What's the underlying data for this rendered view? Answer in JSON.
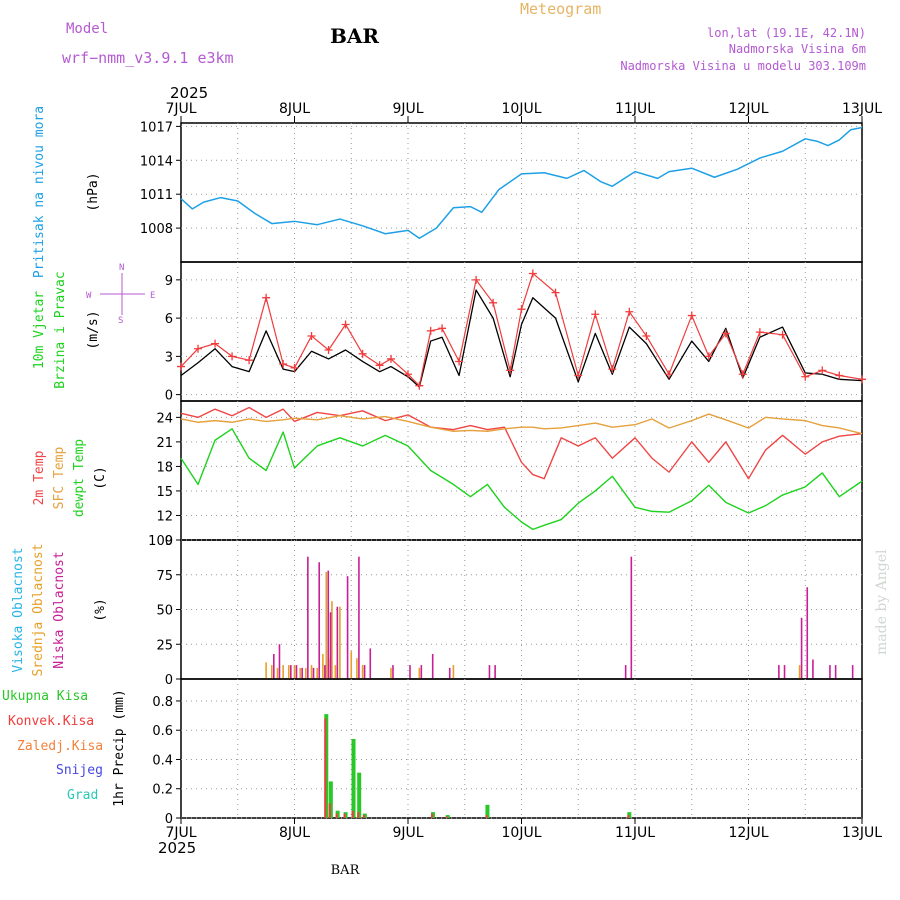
{
  "header": {
    "model_label": "Model",
    "model_name": "wrf−nmm_v3.9.1  e3km",
    "station": "BAR",
    "title": "Meteogram",
    "lonlat": "lon,lat (19.1E, 42.1N)",
    "elevation": "Nadmorska Visina 6m",
    "model_elevation": "Nadmorska Visina u modelu 303.109m",
    "year_top": "2025",
    "year_bottom": "2025",
    "footer_station": "BAR",
    "watermark": "made by Angel",
    "compass": [
      "N",
      "E",
      "S",
      "W"
    ]
  },
  "time_axis": {
    "days": [
      "7JUL",
      "8JUL",
      "9JUL",
      "10JUL",
      "11JUL",
      "12JUL",
      "13JUL"
    ]
  },
  "colors": {
    "pressure": "#1ea0e6",
    "wind_speed": "#000000",
    "wind_gust": "#f03c3c",
    "temp2m": "#f04646",
    "sfc_temp": "#e6a03c",
    "dewpt": "#1ed21e",
    "cloud_high": "#28b4e6",
    "cloud_mid": "#e6a028",
    "cloud_low": "#c81e96",
    "precip_total": "#28c828",
    "precip_conv": "#f03c3c",
    "precip_frozen": "#f0823c",
    "snow": "#4646e6",
    "graupel": "#28c8b4"
  },
  "chart_data": [
    {
      "type": "line",
      "panel": "pressure",
      "label": "Pritisak na nivou mora",
      "unit": "(hPa)",
      "ylim": [
        1005,
        1017.3
      ],
      "yticks": [
        "1017",
        "1014",
        "1011",
        "1008"
      ],
      "ytick_values": [
        1017,
        1014,
        1011,
        1008
      ],
      "x": [
        0,
        0.1,
        0.2,
        0.35,
        0.5,
        0.65,
        0.8,
        1.0,
        1.2,
        1.4,
        1.6,
        1.8,
        2.0,
        2.1,
        2.25,
        2.4,
        2.55,
        2.65,
        2.8,
        3.0,
        3.2,
        3.4,
        3.55,
        3.7,
        3.8,
        4.0,
        4.2,
        4.3,
        4.5,
        4.7,
        4.9,
        5.1,
        5.3,
        5.5,
        5.6,
        5.7,
        5.8,
        5.9,
        6.0
      ],
      "values": [
        1010.6,
        1009.7,
        1010.3,
        1010.7,
        1010.4,
        1009.3,
        1008.4,
        1008.6,
        1008.3,
        1008.8,
        1008.2,
        1007.5,
        1007.8,
        1007.1,
        1008.0,
        1009.8,
        1009.9,
        1009.4,
        1011.4,
        1012.8,
        1012.9,
        1012.4,
        1013.1,
        1012.1,
        1011.7,
        1013.0,
        1012.4,
        1013.0,
        1013.3,
        1012.5,
        1013.2,
        1014.2,
        1014.8,
        1015.9,
        1015.7,
        1015.3,
        1015.8,
        1016.7,
        1016.9
      ]
    },
    {
      "type": "line",
      "panel": "wind",
      "label": "10m Vjetar",
      "label2": "Brzina i Pravac",
      "unit": "(m/s)",
      "ylim": [
        -0.5,
        10.4
      ],
      "yticks": [
        "9",
        "6",
        "3",
        "0"
      ],
      "ytick_values": [
        9,
        6,
        3,
        0
      ],
      "x": [
        0,
        0.15,
        0.3,
        0.45,
        0.6,
        0.75,
        0.9,
        1.0,
        1.15,
        1.3,
        1.45,
        1.6,
        1.75,
        1.85,
        2.0,
        2.1,
        2.2,
        2.3,
        2.45,
        2.6,
        2.75,
        2.9,
        3.0,
        3.1,
        3.3,
        3.5,
        3.65,
        3.8,
        3.95,
        4.1,
        4.3,
        4.5,
        4.65,
        4.8,
        4.95,
        5.1,
        5.3,
        5.5,
        5.65,
        5.8,
        6.0
      ],
      "series": [
        {
          "name": "speed",
          "values": [
            1.5,
            2.5,
            3.6,
            2.2,
            1.8,
            5.0,
            2.0,
            1.8,
            3.4,
            2.8,
            3.5,
            2.6,
            1.8,
            2.2,
            1.4,
            0.6,
            4.2,
            4.5,
            1.5,
            8.2,
            6.0,
            1.4,
            5.5,
            7.6,
            6.0,
            1.0,
            4.8,
            1.6,
            5.3,
            4.0,
            1.2,
            4.2,
            2.6,
            5.2,
            1.3,
            4.5,
            5.3,
            1.7,
            1.6,
            1.2,
            1.1
          ]
        },
        {
          "name": "gust",
          "values": [
            2.2,
            3.6,
            4.0,
            3.0,
            2.7,
            7.6,
            2.4,
            2.1,
            4.6,
            3.5,
            5.5,
            3.2,
            2.3,
            2.8,
            1.6,
            0.7,
            5.0,
            5.2,
            2.6,
            9.0,
            7.2,
            1.9,
            6.7,
            9.5,
            8.0,
            1.5,
            6.3,
            2.0,
            6.5,
            4.6,
            1.6,
            6.2,
            3.0,
            4.8,
            1.6,
            4.9,
            4.7,
            1.4,
            1.9,
            1.5,
            1.2
          ]
        }
      ]
    },
    {
      "type": "line",
      "panel": "temperature",
      "label": "2m Temp",
      "label2": "SFC Temp",
      "label3": "dewpt Temp",
      "unit": "(C)",
      "ylim": [
        9,
        26
      ],
      "yticks": [
        "24",
        "21",
        "18",
        "15",
        "12",
        "9"
      ],
      "ytick_values": [
        24,
        21,
        18,
        15,
        12,
        9
      ],
      "x": [
        0,
        0.15,
        0.3,
        0.45,
        0.6,
        0.75,
        0.9,
        1.0,
        1.2,
        1.4,
        1.6,
        1.8,
        2.0,
        2.2,
        2.4,
        2.55,
        2.7,
        2.85,
        3.0,
        3.1,
        3.2,
        3.35,
        3.5,
        3.65,
        3.8,
        4.0,
        4.15,
        4.3,
        4.5,
        4.65,
        4.8,
        5.0,
        5.15,
        5.3,
        5.5,
        5.65,
        5.8,
        6.0
      ],
      "series": [
        {
          "name": "2m Temp",
          "values": [
            24.5,
            24.0,
            25.0,
            24.2,
            25.2,
            24.0,
            25.0,
            23.5,
            24.6,
            24.2,
            24.8,
            23.6,
            24.3,
            22.8,
            22.5,
            23.0,
            22.5,
            22.8,
            18.5,
            17.0,
            16.5,
            21.5,
            20.5,
            21.5,
            19.0,
            21.5,
            19.0,
            17.3,
            21.0,
            18.5,
            21.0,
            16.5,
            20.0,
            21.8,
            19.5,
            21.0,
            21.7,
            22.0
          ]
        },
        {
          "name": "SFC Temp",
          "values": [
            23.8,
            23.4,
            23.6,
            23.4,
            23.8,
            23.5,
            23.7,
            23.9,
            23.7,
            24.2,
            23.8,
            24.1,
            23.5,
            22.8,
            22.3,
            22.4,
            22.3,
            22.6,
            22.8,
            22.8,
            22.6,
            22.7,
            23.0,
            23.3,
            22.8,
            23.1,
            23.8,
            22.7,
            23.6,
            24.4,
            23.7,
            22.7,
            24.0,
            23.8,
            23.6,
            23.0,
            22.7,
            22.0
          ]
        },
        {
          "name": "dewpt Temp",
          "values": [
            19.0,
            15.8,
            21.2,
            22.6,
            19.0,
            17.5,
            22.2,
            17.8,
            20.5,
            21.5,
            20.5,
            21.8,
            20.5,
            17.5,
            15.8,
            14.3,
            15.8,
            13.0,
            11.2,
            10.3,
            10.8,
            11.5,
            13.5,
            15.0,
            16.8,
            13.0,
            12.5,
            12.4,
            13.8,
            15.7,
            13.6,
            12.3,
            13.2,
            14.5,
            15.5,
            17.2,
            14.3,
            16.2
          ]
        }
      ]
    },
    {
      "type": "bar",
      "panel": "clouds",
      "label": "Visoka Oblacnost",
      "label2": "Srednja Oblacnost",
      "label3": "Niska Oblacnost",
      "unit": "(%)",
      "ylim": [
        0,
        100
      ],
      "yticks": [
        "100",
        "75",
        "50",
        "25",
        "0"
      ],
      "ytick_values": [
        100,
        75,
        50,
        25,
        0
      ],
      "x": [
        0.75,
        0.8,
        0.85,
        0.9,
        0.95,
        1.0,
        1.05,
        1.1,
        1.15,
        1.2,
        1.25,
        1.28,
        1.3,
        1.33,
        1.36,
        1.4,
        1.45,
        1.5,
        1.55,
        1.6,
        1.65,
        1.7,
        1.85,
        2.0,
        2.1,
        2.2,
        2.35,
        2.4,
        2.7,
        2.75,
        3.9,
        3.95,
        4.8,
        4.85,
        5.25,
        5.3,
        5.35,
        5.45,
        5.5,
        5.55,
        5.7,
        5.75,
        5.9,
        6.0
      ],
      "series": [
        {
          "name": "Visoka",
          "values": [
            0,
            0,
            0,
            0,
            0,
            0,
            0,
            0,
            0,
            0,
            0,
            0,
            0,
            0,
            0,
            0,
            0,
            0,
            0,
            0,
            0,
            0,
            0,
            0,
            0,
            0,
            0,
            0,
            0,
            0,
            0,
            0,
            0,
            0,
            0,
            0,
            0,
            0,
            0,
            0,
            0,
            0,
            0,
            0
          ]
        },
        {
          "name": "Srednja",
          "values": [
            12,
            10,
            8,
            10,
            10,
            10,
            8,
            8,
            10,
            8,
            18,
            77,
            15,
            56,
            10,
            52,
            0,
            20,
            15,
            10,
            0,
            0,
            8,
            0,
            8,
            0,
            0,
            10,
            0,
            0,
            0,
            0,
            0,
            0,
            0,
            0,
            0,
            10,
            0,
            0,
            0,
            0,
            0,
            0
          ]
        },
        {
          "name": "Niska",
          "values": [
            0,
            18,
            25,
            0,
            10,
            10,
            8,
            88,
            8,
            84,
            10,
            78,
            48,
            0,
            52,
            0,
            74,
            0,
            88,
            10,
            22,
            0,
            10,
            10,
            10,
            18,
            8,
            0,
            10,
            10,
            10,
            88,
            0,
            0,
            10,
            10,
            0,
            44,
            66,
            14,
            10,
            10,
            10,
            0
          ]
        }
      ]
    },
    {
      "type": "bar",
      "panel": "precipitation",
      "label": "Ukupna Kisa",
      "label2": "Konvek.Kisa",
      "label3": "Zaledj.Kisa",
      "label4": "Snijeg",
      "label5": "Grad",
      "unit": "1hr Precip (mm)",
      "ylim": [
        0,
        0.95
      ],
      "yticks": [
        "0.8",
        "0.6",
        "0.4",
        "0.2",
        "0"
      ],
      "ytick_values": [
        0.8,
        0.6,
        0.4,
        0.2,
        0
      ],
      "x": [
        1.28,
        1.32,
        1.38,
        1.45,
        1.52,
        1.57,
        1.62,
        2.22,
        2.35,
        2.7,
        3.95
      ],
      "series": [
        {
          "name": "Ukupna Kisa",
          "values": [
            0.71,
            0.25,
            0.05,
            0.04,
            0.54,
            0.31,
            0.03,
            0.04,
            0.02,
            0.09,
            0.04
          ]
        },
        {
          "name": "Konvek.Kisa",
          "values": [
            0.68,
            0.1,
            0.03,
            0.03,
            0.05,
            0.04,
            0.02,
            0.03,
            0.01,
            0.02,
            0.02
          ]
        }
      ]
    }
  ]
}
